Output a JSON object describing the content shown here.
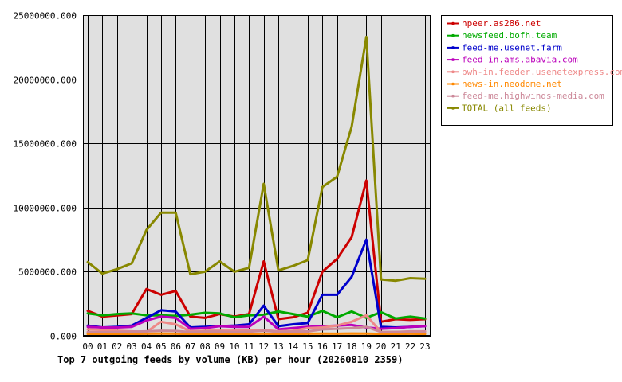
{
  "chart_data": {
    "type": "line",
    "title": "Top 7 outgoing feeds by volume (KB) per hour (20260810 2359)",
    "xlabel": "",
    "ylabel": "",
    "grid": true,
    "legend_position": "top-right",
    "ylim": [
      0,
      25000000
    ],
    "y_ticks": [
      "0.000",
      "5000000.000",
      "10000000.000",
      "15000000.000",
      "20000000.000",
      "25000000.000"
    ],
    "categories": [
      "00",
      "01",
      "02",
      "03",
      "04",
      "05",
      "06",
      "07",
      "08",
      "09",
      "10",
      "11",
      "12",
      "13",
      "14",
      "15",
      "16",
      "17",
      "18",
      "19",
      "20",
      "21",
      "22",
      "23"
    ],
    "series": [
      {
        "name": "npeer.as286.net",
        "color": "#cc0000",
        "values": [
          1950000,
          1500000,
          1600000,
          1700000,
          3650000,
          3200000,
          3500000,
          1500000,
          1400000,
          1700000,
          1500000,
          1700000,
          5800000,
          1300000,
          1450000,
          1800000,
          5000000,
          6000000,
          7700000,
          12100000,
          1100000,
          1300000,
          1250000,
          1300000
        ]
      },
      {
        "name": "newsfeed.bofh.team",
        "color": "#00aa00",
        "values": [
          1750000,
          1600000,
          1700000,
          1750000,
          1600000,
          1600000,
          1550000,
          1650000,
          1800000,
          1750000,
          1450000,
          1600000,
          1650000,
          1900000,
          1700000,
          1500000,
          1950000,
          1450000,
          1900000,
          1400000,
          1850000,
          1350000,
          1500000,
          1350000
        ]
      },
      {
        "name": "feed-me.usenet.farm",
        "color": "#0000cc",
        "values": [
          800000,
          650000,
          700000,
          800000,
          1400000,
          2000000,
          1900000,
          650000,
          700000,
          750000,
          800000,
          900000,
          2350000,
          750000,
          900000,
          1000000,
          3200000,
          3200000,
          4600000,
          7500000,
          700000,
          650000,
          700000,
          750000
        ]
      },
      {
        "name": "feed-in.ams.abavia.com",
        "color": "#bb00bb",
        "values": [
          700000,
          650000,
          650000,
          700000,
          1200000,
          1500000,
          1400000,
          550000,
          600000,
          750000,
          700000,
          700000,
          1500000,
          500000,
          600000,
          700000,
          750000,
          800000,
          850000,
          650000,
          550000,
          600000,
          700000,
          750000
        ]
      },
      {
        "name": "bwh-in.feeder.usenetexpress.com",
        "color": "#ee8888",
        "values": [
          500000,
          450000,
          400000,
          350000,
          300000,
          1100000,
          900000,
          350000,
          400000,
          400000,
          400000,
          450000,
          450000,
          350000,
          400000,
          600000,
          650000,
          800000,
          1100000,
          1600000,
          300000,
          300000,
          350000,
          350000
        ]
      },
      {
        "name": "news-in.neodome.net",
        "color": "#ff8800",
        "values": [
          150000,
          130000,
          140000,
          150000,
          160000,
          170000,
          160000,
          140000,
          150000,
          150000,
          140000,
          150000,
          160000,
          150000,
          150000,
          160000,
          170000,
          160000,
          180000,
          170000,
          150000,
          150000,
          160000,
          150000
        ]
      },
      {
        "name": "feed-me.highwinds-media.com",
        "color": "#cc8899",
        "values": [
          300000,
          280000,
          300000,
          320000,
          350000,
          400000,
          380000,
          300000,
          320000,
          330000,
          300000,
          320000,
          400000,
          310000,
          330000,
          340000,
          500000,
          550000,
          600000,
          700000,
          300000,
          310000,
          320000,
          330000
        ]
      },
      {
        "name": "TOTAL (all feeds)",
        "color": "#888800",
        "values": [
          5750000,
          4850000,
          5200000,
          5650000,
          8250000,
          9600000,
          9600000,
          4800000,
          5000000,
          5800000,
          5000000,
          5300000,
          11850000,
          5100000,
          5450000,
          5900000,
          11600000,
          12400000,
          16300000,
          23300000,
          4400000,
          4300000,
          4500000,
          4450000
        ]
      }
    ]
  }
}
